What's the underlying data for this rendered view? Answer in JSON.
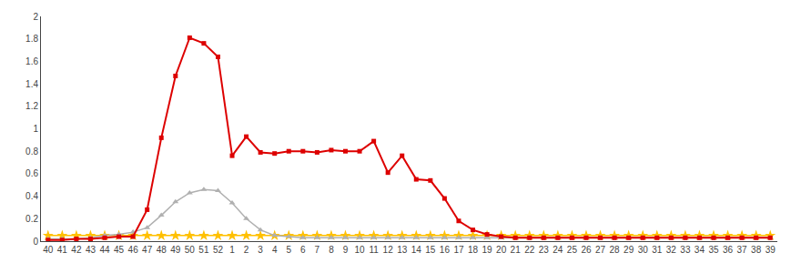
{
  "chart_data": {
    "type": "line",
    "categories": [
      "40",
      "41",
      "42",
      "43",
      "44",
      "45",
      "46",
      "47",
      "48",
      "49",
      "50",
      "51",
      "52",
      "1",
      "2",
      "3",
      "4",
      "5",
      "6",
      "7",
      "8",
      "9",
      "10",
      "11",
      "12",
      "13",
      "14",
      "15",
      "16",
      "17",
      "18",
      "19",
      "20",
      "21",
      "22",
      "23",
      "24",
      "25",
      "26",
      "27",
      "28",
      "29",
      "30",
      "31",
      "32",
      "33",
      "34",
      "35",
      "36",
      "37",
      "38",
      "39"
    ],
    "series": [
      {
        "color": "#ffc000",
        "marker": "star",
        "line_style": "solid",
        "values": [
          0.05,
          0.05,
          0.05,
          0.05,
          0.05,
          0.05,
          0.05,
          0.05,
          0.05,
          0.05,
          0.05,
          0.05,
          0.05,
          0.05,
          0.05,
          0.05,
          0.05,
          0.05,
          0.05,
          0.05,
          0.05,
          0.05,
          0.05,
          0.05,
          0.05,
          0.05,
          0.05,
          0.05,
          0.05,
          0.05,
          0.05,
          0.05,
          0.05,
          0.05,
          0.05,
          0.05,
          0.05,
          0.05,
          0.05,
          0.05,
          0.05,
          0.05,
          0.05,
          0.05,
          0.05,
          0.05,
          0.05,
          0.05,
          0.05,
          0.05,
          0.05,
          0.05
        ]
      },
      {
        "color": "#b0b0b0",
        "marker": "triangle",
        "line_style": "solid",
        "values": [
          0.02,
          0.02,
          0.02,
          0.03,
          0.05,
          0.06,
          0.08,
          0.12,
          0.23,
          0.35,
          0.43,
          0.46,
          0.45,
          0.34,
          0.2,
          0.1,
          0.05,
          0.04,
          0.03,
          0.03,
          0.03,
          0.03,
          0.03,
          0.03,
          0.03,
          0.03,
          0.03,
          0.03,
          0.03,
          0.03,
          0.03,
          0.03,
          0.03,
          0.03,
          0.03,
          0.03,
          0.03,
          0.03,
          0.03,
          0.03,
          0.03,
          0.03,
          0.03,
          0.03,
          0.03,
          0.03,
          0.03,
          0.03,
          0.03,
          0.03,
          0.03,
          0.03
        ]
      },
      {
        "color": "#dd0000",
        "marker": "square",
        "line_style": "solid",
        "values": [
          0.01,
          0.01,
          0.02,
          0.02,
          0.03,
          0.04,
          0.04,
          0.28,
          0.92,
          1.47,
          1.81,
          1.76,
          1.64,
          0.76,
          0.93,
          0.79,
          0.78,
          0.8,
          0.8,
          0.79,
          0.81,
          0.8,
          0.8,
          0.89,
          0.61,
          0.76,
          0.55,
          0.54,
          0.38,
          0.18,
          0.1,
          0.06,
          0.04,
          0.03,
          0.03,
          0.03,
          0.03,
          0.03,
          0.03,
          0.03,
          0.03,
          0.03,
          0.03,
          0.03,
          0.03,
          0.03,
          0.03,
          0.03,
          0.03,
          0.03,
          0.03,
          0.03
        ]
      }
    ],
    "ylim": [
      0,
      2.0
    ],
    "yticks": [
      0,
      0.2,
      0.4,
      0.6,
      0.8,
      1,
      1.2,
      1.4,
      1.6,
      1.8,
      2
    ],
    "grid": false
  }
}
